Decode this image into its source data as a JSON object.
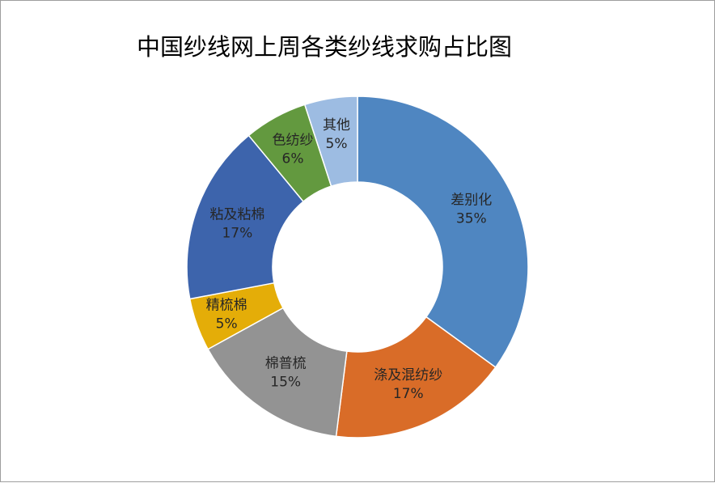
{
  "chart_data": {
    "type": "pie",
    "variant": "doughnut",
    "title": "中国纱线网上周各类纱线求购占比图",
    "start_angle_deg": 0,
    "direction": "clockwise",
    "slices": [
      {
        "label": "差别化",
        "value": 35,
        "display": "35%",
        "color": "#4f86c1"
      },
      {
        "label": "涤及混纺纱",
        "value": 17,
        "display": "17%",
        "color": "#d96c28"
      },
      {
        "label": "棉普梳",
        "value": 15,
        "display": "15%",
        "color": "#939393"
      },
      {
        "label": "精梳棉",
        "value": 5,
        "display": "5%",
        "color": "#e4ad08"
      },
      {
        "label": "粘及粘棉",
        "value": 17,
        "display": "17%",
        "color": "#3d64ac"
      },
      {
        "label": "色纺纱",
        "value": 6,
        "display": "6%",
        "color": "#63993f"
      },
      {
        "label": "其他",
        "value": 5,
        "display": "5%",
        "color": "#9dbce2"
      }
    ],
    "legend": "none"
  }
}
